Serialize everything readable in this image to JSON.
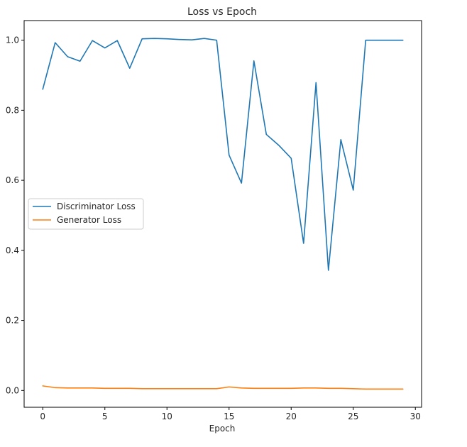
{
  "chart_data": {
    "type": "line",
    "title": "Loss vs Epoch",
    "xlabel": "Epoch",
    "ylabel": "",
    "xlim": [
      -1.5,
      30.5
    ],
    "ylim": [
      -0.048,
      1.056
    ],
    "xticks": [
      0,
      5,
      10,
      15,
      20,
      25,
      30
    ],
    "yticks": [
      0.0,
      0.2,
      0.4,
      0.6,
      0.8,
      1.0
    ],
    "ytick_labels": [
      "0.0",
      "0.2",
      "0.4",
      "0.6",
      "0.8",
      "1.0"
    ],
    "grid": false,
    "legend_position": "center-left",
    "x": [
      0,
      1,
      2,
      3,
      4,
      5,
      6,
      7,
      8,
      9,
      10,
      11,
      12,
      13,
      14,
      15,
      16,
      17,
      18,
      19,
      20,
      21,
      22,
      23,
      24,
      25,
      26,
      27,
      28,
      29
    ],
    "series": [
      {
        "name": "Discriminator Loss",
        "color": "#1f77b4",
        "values": [
          0.86,
          0.993,
          0.953,
          0.94,
          0.999,
          0.978,
          0.999,
          0.92,
          1.004,
          1.005,
          1.004,
          1.002,
          1.001,
          1.005,
          1.0,
          0.672,
          0.592,
          0.941,
          0.731,
          0.7,
          0.663,
          0.42,
          0.879,
          0.343,
          0.716,
          0.572,
          1.0,
          1.0,
          1.0,
          1.0
        ]
      },
      {
        "name": "Generator Loss",
        "color": "#ff7f0e",
        "values": [
          0.013,
          0.008,
          0.007,
          0.007,
          0.007,
          0.006,
          0.006,
          0.006,
          0.005,
          0.005,
          0.005,
          0.005,
          0.005,
          0.005,
          0.005,
          0.01,
          0.007,
          0.006,
          0.006,
          0.006,
          0.006,
          0.007,
          0.007,
          0.006,
          0.006,
          0.005,
          0.004,
          0.004,
          0.004,
          0.004
        ]
      }
    ]
  }
}
